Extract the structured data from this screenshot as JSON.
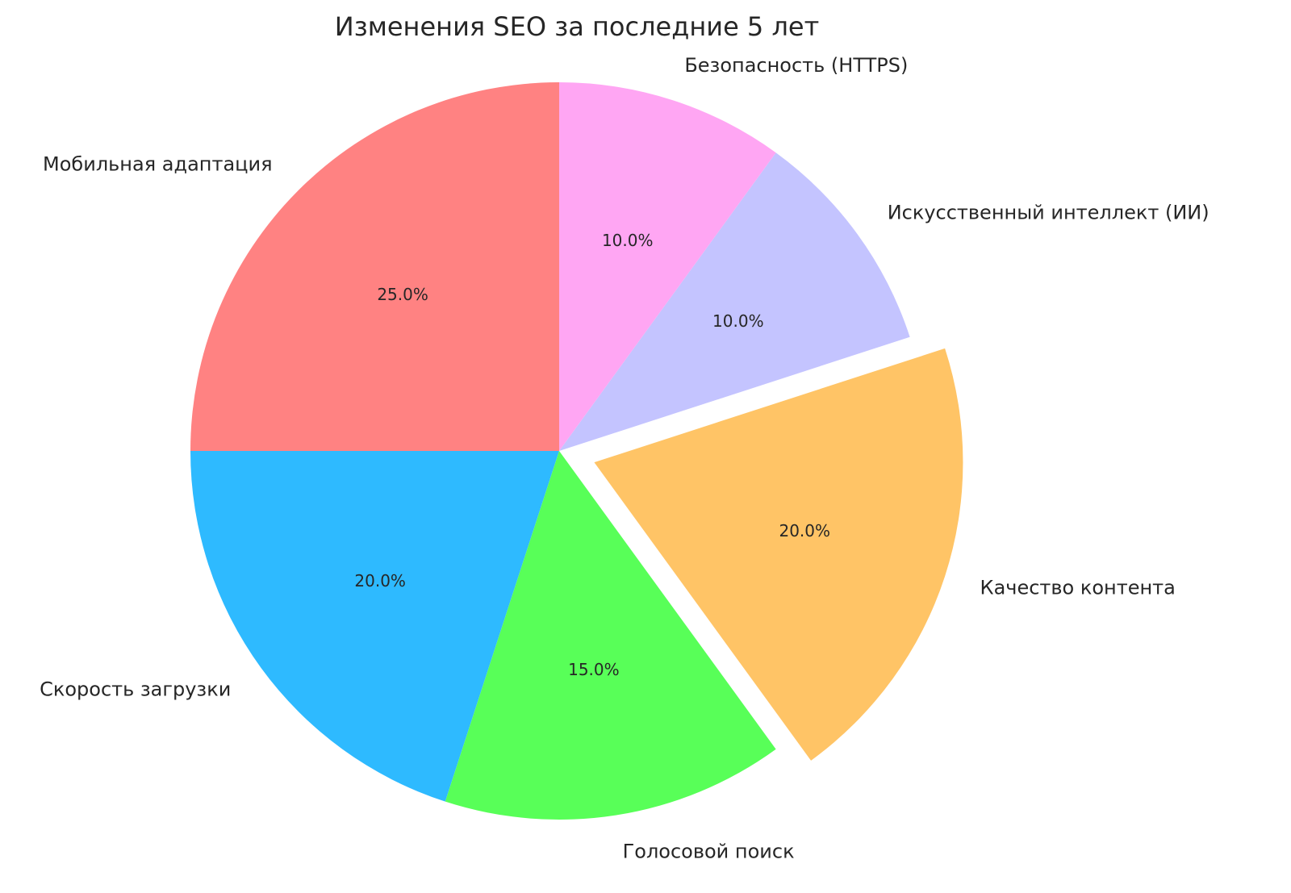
{
  "chart_data": {
    "type": "pie",
    "title": "Изменения SEO за последние 5 лет",
    "start_angle_deg": 90,
    "direction": "counterclockwise",
    "slices": [
      {
        "label": "Мобильная адаптация",
        "value": 25,
        "pct_label": "25.0%",
        "color": "#ff8282",
        "explode": 0
      },
      {
        "label": "Скорость загрузки",
        "value": 20,
        "pct_label": "20.0%",
        "color": "#2ebaff",
        "explode": 0
      },
      {
        "label": "Голосовой поиск",
        "value": 15,
        "pct_label": "15.0%",
        "color": "#58ff58",
        "explode": 0
      },
      {
        "label": "Качество контента",
        "value": 20,
        "pct_label": "20.0%",
        "color": "#ffc466",
        "explode": 0.1
      },
      {
        "label": "Искусственный интеллект (ИИ)",
        "value": 10,
        "pct_label": "10.0%",
        "color": "#c4c4ff",
        "explode": 0
      },
      {
        "label": "Безопасность (HTTPS)",
        "value": 10,
        "pct_label": "10.0%",
        "color": "#ffa6f3",
        "explode": 0
      }
    ]
  }
}
